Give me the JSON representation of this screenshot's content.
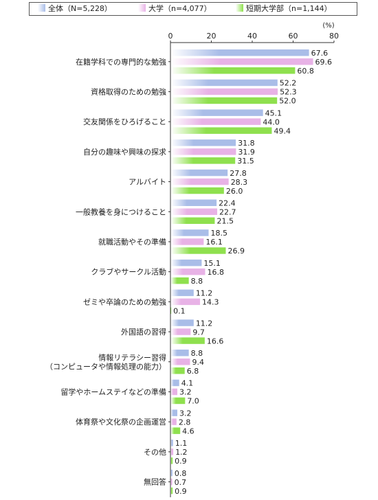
{
  "chart_data": {
    "type": "bar",
    "orientation": "horizontal",
    "unit": "(%)",
    "xlim": [
      0,
      80
    ],
    "ticks": [
      0,
      20,
      40,
      60,
      80
    ],
    "legend_placement": "top",
    "categories": [
      [
        "在籍学科での専門的な勉強"
      ],
      [
        "資格取得のための勉強"
      ],
      [
        "交友関係をひろげること"
      ],
      [
        "自分の趣味や興味の探求"
      ],
      [
        "アルバイト"
      ],
      [
        "一般教養を身につけること"
      ],
      [
        "就職活動やその準備"
      ],
      [
        "クラブやサークル活動"
      ],
      [
        "ゼミや卒論のための勉強"
      ],
      [
        "外国語の習得"
      ],
      [
        "情報リテラシー習得",
        "（コンピュータや情報処理の能力）"
      ],
      [
        "留学やホームステイなどの準備"
      ],
      [
        "体育祭や文化祭の企画運営"
      ],
      [
        "その他"
      ],
      [
        "無回答"
      ]
    ],
    "series": [
      {
        "name": "全体（N=5,228）",
        "color": "#a9bde8",
        "values": [
          67.6,
          52.2,
          45.1,
          31.8,
          27.8,
          22.4,
          18.5,
          15.1,
          11.2,
          11.2,
          8.8,
          4.1,
          3.2,
          1.1,
          0.8
        ]
      },
      {
        "name": "大学（n=4,077）",
        "color": "#e8b2e6",
        "values": [
          69.6,
          52.3,
          44.0,
          31.9,
          28.3,
          22.7,
          16.1,
          16.8,
          14.3,
          9.7,
          9.4,
          3.2,
          2.8,
          1.2,
          0.7
        ]
      },
      {
        "name": "短期大学部（n=1,144）",
        "color": "#8fe04e",
        "values": [
          60.8,
          52.0,
          49.4,
          31.5,
          26.0,
          21.5,
          26.9,
          8.8,
          0.1,
          16.6,
          6.8,
          7.0,
          4.6,
          0.9,
          0.9
        ]
      }
    ]
  }
}
